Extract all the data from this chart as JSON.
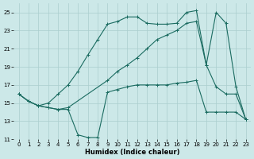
{
  "xlabel": "Humidex (Indice chaleur)",
  "background_color": "#cce8e8",
  "grid_color": "#aacece",
  "line_color": "#1a6b60",
  "xlim": [
    -0.5,
    23.5
  ],
  "ylim": [
    11,
    26
  ],
  "xticks": [
    0,
    1,
    2,
    3,
    4,
    5,
    6,
    7,
    8,
    9,
    10,
    11,
    12,
    13,
    14,
    15,
    16,
    17,
    18,
    19,
    20,
    21,
    22,
    23
  ],
  "yticks": [
    11,
    13,
    15,
    17,
    19,
    21,
    23,
    25
  ],
  "line1_x": [
    0,
    1,
    2,
    3,
    4,
    5,
    6,
    7,
    8,
    9,
    10,
    11,
    12,
    13,
    14,
    15,
    16,
    17,
    18,
    19,
    20,
    21,
    22,
    23
  ],
  "line1_y": [
    16.0,
    15.2,
    14.7,
    14.5,
    14.3,
    14.3,
    11.5,
    11.2,
    11.2,
    16.2,
    16.5,
    16.8,
    17.0,
    17.0,
    17.0,
    17.0,
    17.2,
    17.3,
    17.5,
    14.0,
    14.0,
    14.0,
    14.0,
    13.2
  ],
  "line2_x": [
    0,
    1,
    2,
    3,
    4,
    5,
    6,
    7,
    8,
    9,
    10,
    11,
    12,
    13,
    14,
    15,
    16,
    17,
    18,
    19,
    20,
    21,
    22,
    23
  ],
  "line2_y": [
    16.0,
    15.2,
    14.7,
    15.0,
    16.0,
    17.0,
    18.5,
    20.3,
    22.0,
    23.7,
    24.0,
    24.5,
    24.5,
    23.8,
    23.7,
    23.7,
    23.8,
    25.0,
    25.2,
    19.2,
    25.0,
    23.8,
    16.8,
    13.2
  ],
  "line3_x": [
    0,
    1,
    2,
    3,
    4,
    5,
    9,
    10,
    11,
    12,
    13,
    14,
    15,
    16,
    17,
    18,
    19,
    20,
    21,
    22,
    23
  ],
  "line3_y": [
    16.0,
    15.2,
    14.7,
    14.5,
    14.3,
    14.5,
    17.5,
    18.5,
    19.2,
    20.0,
    21.0,
    22.0,
    22.5,
    23.0,
    23.8,
    24.0,
    19.2,
    16.8,
    16.0,
    16.0,
    13.2
  ]
}
